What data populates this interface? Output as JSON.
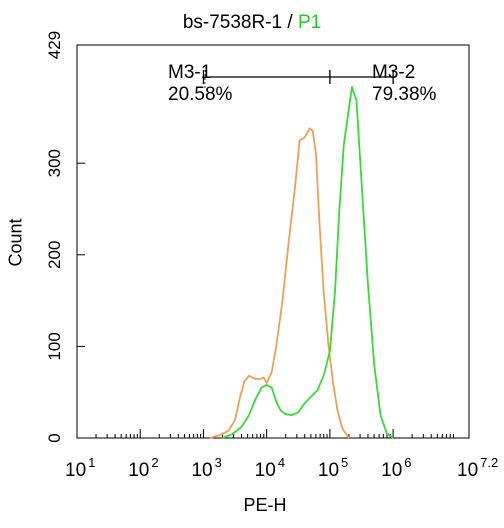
{
  "chart_data": {
    "type": "line",
    "title_main": "bs-7538R-1 / ",
    "title_gate": "P1",
    "title_gate_color": "#22cc22",
    "xlabel": "PE-H",
    "ylabel": "Count",
    "x_scale": "log",
    "xlim_log10": [
      1,
      7.2
    ],
    "ylim": [
      0,
      429
    ],
    "x_ticks": [
      {
        "base": "10",
        "exp": "1",
        "log10": 1
      },
      {
        "base": "10",
        "exp": "2",
        "log10": 2
      },
      {
        "base": "10",
        "exp": "3",
        "log10": 3
      },
      {
        "base": "10",
        "exp": "4",
        "log10": 4
      },
      {
        "base": "10",
        "exp": "5",
        "log10": 5
      },
      {
        "base": "10",
        "exp": "6",
        "log10": 6
      },
      {
        "base": "10",
        "exp": "7.2",
        "log10": 7.2
      }
    ],
    "y_ticks": [
      0,
      100,
      200,
      300,
      429
    ],
    "y_tick_labels": [
      "0",
      "100",
      "200",
      "300",
      "429"
    ],
    "grid": false,
    "series": [
      {
        "color": "#f0a050",
        "points_log10x": [
          [
            3.1,
            0
          ],
          [
            3.25,
            3
          ],
          [
            3.4,
            8
          ],
          [
            3.5,
            20
          ],
          [
            3.58,
            45
          ],
          [
            3.65,
            62
          ],
          [
            3.72,
            68
          ],
          [
            3.8,
            65
          ],
          [
            3.88,
            64
          ],
          [
            3.95,
            66
          ],
          [
            4.0,
            60
          ],
          [
            4.08,
            72
          ],
          [
            4.15,
            100
          ],
          [
            4.25,
            150
          ],
          [
            4.35,
            215
          ],
          [
            4.45,
            275
          ],
          [
            4.52,
            325
          ],
          [
            4.6,
            328
          ],
          [
            4.68,
            338
          ],
          [
            4.73,
            335
          ],
          [
            4.78,
            310
          ],
          [
            4.83,
            240
          ],
          [
            4.9,
            160
          ],
          [
            4.98,
            100
          ],
          [
            5.05,
            60
          ],
          [
            5.12,
            30
          ],
          [
            5.2,
            10
          ],
          [
            5.3,
            0
          ]
        ]
      },
      {
        "color": "#33dd33",
        "points_log10x": [
          [
            3.3,
            0
          ],
          [
            3.45,
            4
          ],
          [
            3.6,
            12
          ],
          [
            3.72,
            25
          ],
          [
            3.82,
            42
          ],
          [
            3.92,
            55
          ],
          [
            4.0,
            58
          ],
          [
            4.08,
            55
          ],
          [
            4.15,
            40
          ],
          [
            4.22,
            30
          ],
          [
            4.3,
            26
          ],
          [
            4.4,
            25
          ],
          [
            4.5,
            28
          ],
          [
            4.6,
            38
          ],
          [
            4.7,
            45
          ],
          [
            4.8,
            52
          ],
          [
            4.9,
            68
          ],
          [
            5.0,
            95
          ],
          [
            5.08,
            160
          ],
          [
            5.15,
            250
          ],
          [
            5.22,
            320
          ],
          [
            5.3,
            360
          ],
          [
            5.35,
            383
          ],
          [
            5.42,
            368
          ],
          [
            5.5,
            280
          ],
          [
            5.6,
            170
          ],
          [
            5.7,
            80
          ],
          [
            5.8,
            25
          ],
          [
            5.9,
            5
          ],
          [
            6.0,
            0
          ]
        ]
      }
    ],
    "markers": [
      {
        "label": "M3-1",
        "percent": "20.58%",
        "range_log10": [
          3.0,
          5.0
        ]
      },
      {
        "label": "M3-2",
        "percent": "79.38%",
        "range_log10": [
          5.0,
          6.0
        ]
      }
    ]
  }
}
